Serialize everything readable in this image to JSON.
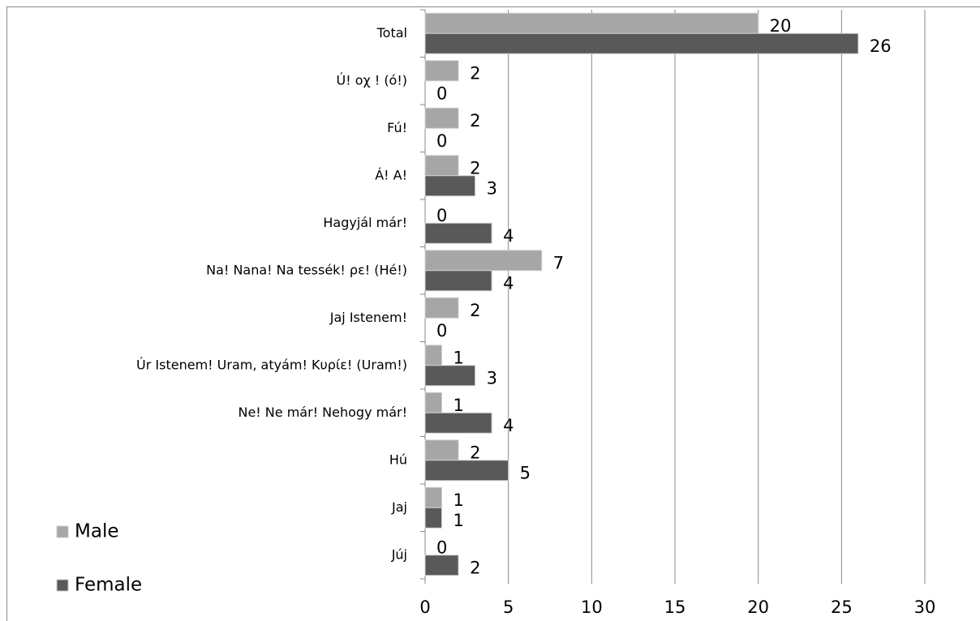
{
  "chart_data": {
    "type": "bar",
    "orientation": "horizontal",
    "categories": [
      "Total",
      "Ú! οχ ! (ó!)",
      "Fú!",
      "Á! A!",
      "Hagyjál már!",
      "Na! Nana! Na tessék! ρε! (Hé!)",
      "Jaj Istenem!",
      "Úr Istenem! Uram, atyám! Κυρίε! (Uram!)",
      "Ne! Ne már! Nehogy már!",
      "Hú",
      "Jaj",
      "Júj"
    ],
    "series": [
      {
        "name": "Male",
        "color": "#a6a6a6",
        "values": [
          20,
          2,
          2,
          2,
          0,
          7,
          2,
          1,
          1,
          2,
          1,
          0
        ]
      },
      {
        "name": "Female",
        "color": "#595959",
        "values": [
          26,
          0,
          0,
          3,
          4,
          4,
          0,
          3,
          4,
          5,
          1,
          2
        ]
      }
    ],
    "xlim": [
      0,
      30
    ],
    "xticks": [
      0,
      5,
      10,
      15,
      20,
      25,
      30
    ],
    "grid": true,
    "legend": "bottom-left"
  }
}
